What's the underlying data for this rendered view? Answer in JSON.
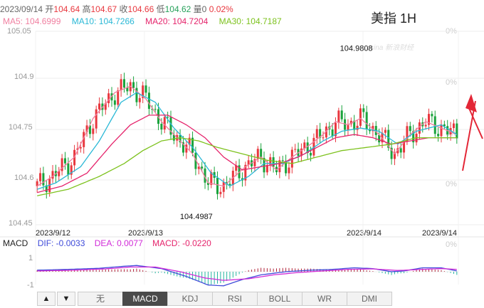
{
  "header": {
    "date": "2023/09/14",
    "open_label": "开",
    "open_value": "104.64",
    "high_label": "高",
    "high_value": "104.67",
    "close_label": "收",
    "close_value": "104.66",
    "low_label": "低",
    "low_value": "104.62",
    "volume_label": "量",
    "volume_value": "0",
    "change_pct": "0.02%"
  },
  "title": "美指 1H",
  "watermark": "sina 新浪财经",
  "moving_averages": [
    {
      "label": "MA5: 104.6999",
      "color": "#f07fa0"
    },
    {
      "label": "MA10: 104.7266",
      "color": "#2ab8d6"
    },
    {
      "label": "MA20: 104.7204",
      "color": "#e5236b"
    },
    {
      "label": "MA30: 104.7187",
      "color": "#7dc21e"
    }
  ],
  "macd": {
    "name": "MACD",
    "dif_label": "DIF: -0.0033",
    "dif_color": "#3f4bd9",
    "dea_label": "DEA: 0.0077",
    "dea_color": "#d12cd8",
    "macd_label": "MACD: -0.0220",
    "macd_color": "#e5236b",
    "y_top": "1",
    "y_bottom": "-1"
  },
  "tabs": [
    "无",
    "MACD",
    "KDJ",
    "RSI",
    "BOLL",
    "WR",
    "DMI"
  ],
  "active_tab": "MACD",
  "nav": {
    "up": "▲",
    "down": "▼"
  },
  "colors": {
    "up": "#e8373e",
    "down": "#1aa33c",
    "grid": "#eeeeee",
    "arrow": "#e32636"
  },
  "chart_data": {
    "type": "candlestick",
    "ylim": [
      104.45,
      105.05
    ],
    "y_ticks": [
      "105.05",
      "104.9",
      "104.75",
      "104.6",
      "104.45"
    ],
    "right_pct_ticks": [
      "0%",
      "0%",
      "0%",
      "0%",
      "0%"
    ],
    "x_labels": [
      "2023/9/12",
      "2023/9/13",
      "2023/9/14",
      "2023/9/14"
    ],
    "x_label_index": [
      0,
      30,
      105,
      125
    ],
    "annotations": [
      {
        "label": "104.9808",
        "index": 102,
        "value": 104.9808
      },
      {
        "label": "104.4987",
        "index": 51,
        "value": 104.4987
      }
    ],
    "ma_anchors": {
      "ma5": [
        [
          0,
          104.57
        ],
        [
          5,
          104.6
        ],
        [
          12,
          104.66
        ],
        [
          18,
          104.78
        ],
        [
          25,
          104.86
        ],
        [
          30,
          104.88
        ],
        [
          35,
          104.84
        ],
        [
          40,
          104.77
        ],
        [
          45,
          104.72
        ],
        [
          50,
          104.67
        ],
        [
          55,
          104.58
        ],
        [
          60,
          104.57
        ],
        [
          67,
          104.63
        ],
        [
          72,
          104.66
        ],
        [
          77,
          104.62
        ],
        [
          82,
          104.66
        ],
        [
          88,
          104.7
        ],
        [
          92,
          104.73
        ],
        [
          96,
          104.77
        ],
        [
          100,
          104.76
        ],
        [
          104,
          104.78
        ],
        [
          110,
          104.73
        ],
        [
          115,
          104.67
        ],
        [
          120,
          104.73
        ],
        [
          125,
          104.77
        ],
        [
          130,
          104.75
        ],
        [
          135,
          104.73
        ]
      ],
      "ma10": [
        [
          0,
          104.56
        ],
        [
          6,
          104.58
        ],
        [
          14,
          104.63
        ],
        [
          20,
          104.71
        ],
        [
          27,
          104.83
        ],
        [
          32,
          104.86
        ],
        [
          38,
          104.83
        ],
        [
          44,
          104.75
        ],
        [
          50,
          104.69
        ],
        [
          56,
          104.61
        ],
        [
          62,
          104.57
        ],
        [
          68,
          104.6
        ],
        [
          73,
          104.64
        ],
        [
          79,
          104.64
        ],
        [
          86,
          104.67
        ],
        [
          92,
          104.71
        ],
        [
          98,
          104.74
        ],
        [
          104,
          104.75
        ],
        [
          110,
          104.74
        ],
        [
          116,
          104.7
        ],
        [
          122,
          104.74
        ],
        [
          130,
          104.76
        ],
        [
          135,
          104.73
        ]
      ],
      "ma20": [
        [
          0,
          104.55
        ],
        [
          8,
          104.57
        ],
        [
          16,
          104.61
        ],
        [
          24,
          104.7
        ],
        [
          30,
          104.76
        ],
        [
          36,
          104.79
        ],
        [
          42,
          104.79
        ],
        [
          48,
          104.76
        ],
        [
          54,
          104.72
        ],
        [
          60,
          104.66
        ],
        [
          66,
          104.62
        ],
        [
          72,
          104.63
        ],
        [
          78,
          104.64
        ],
        [
          84,
          104.66
        ],
        [
          90,
          104.69
        ],
        [
          96,
          104.72
        ],
        [
          102,
          104.73
        ],
        [
          108,
          104.72
        ],
        [
          114,
          104.7
        ],
        [
          120,
          104.71
        ],
        [
          126,
          104.72
        ],
        [
          135,
          104.72
        ]
      ],
      "ma30": [
        [
          0,
          104.54
        ],
        [
          10,
          104.56
        ],
        [
          20,
          104.6
        ],
        [
          28,
          104.64
        ],
        [
          34,
          104.68
        ],
        [
          40,
          104.71
        ],
        [
          46,
          104.72
        ],
        [
          52,
          104.71
        ],
        [
          58,
          104.69
        ],
        [
          66,
          104.67
        ],
        [
          74,
          104.65
        ],
        [
          82,
          104.64
        ],
        [
          90,
          104.66
        ],
        [
          98,
          104.68
        ],
        [
          106,
          104.69
        ],
        [
          114,
          104.7
        ],
        [
          122,
          104.72
        ],
        [
          135,
          104.72
        ]
      ]
    },
    "macd_anchors": {
      "dif": [
        [
          0,
          0.1
        ],
        [
          10,
          0.15
        ],
        [
          20,
          0.22
        ],
        [
          28,
          0.35
        ],
        [
          32,
          0.4
        ],
        [
          40,
          0.2
        ],
        [
          48,
          -0.3
        ],
        [
          55,
          -0.85
        ],
        [
          60,
          -0.9
        ],
        [
          66,
          -0.5
        ],
        [
          72,
          -0.2
        ],
        [
          80,
          0.0
        ],
        [
          88,
          0.1
        ],
        [
          95,
          0.15
        ],
        [
          102,
          0.25
        ],
        [
          108,
          0.2
        ],
        [
          114,
          0.0
        ],
        [
          118,
          0.05
        ],
        [
          124,
          0.25
        ],
        [
          130,
          0.25
        ],
        [
          135,
          0.05
        ]
      ],
      "dea": [
        [
          0,
          0.05
        ],
        [
          12,
          0.1
        ],
        [
          22,
          0.18
        ],
        [
          30,
          0.3
        ],
        [
          38,
          0.3
        ],
        [
          46,
          0.0
        ],
        [
          54,
          -0.4
        ],
        [
          60,
          -0.55
        ],
        [
          68,
          -0.45
        ],
        [
          76,
          -0.2
        ],
        [
          84,
          -0.05
        ],
        [
          92,
          0.05
        ],
        [
          100,
          0.15
        ],
        [
          108,
          0.18
        ],
        [
          116,
          0.08
        ],
        [
          124,
          0.15
        ],
        [
          130,
          0.2
        ],
        [
          135,
          0.15
        ]
      ]
    }
  }
}
